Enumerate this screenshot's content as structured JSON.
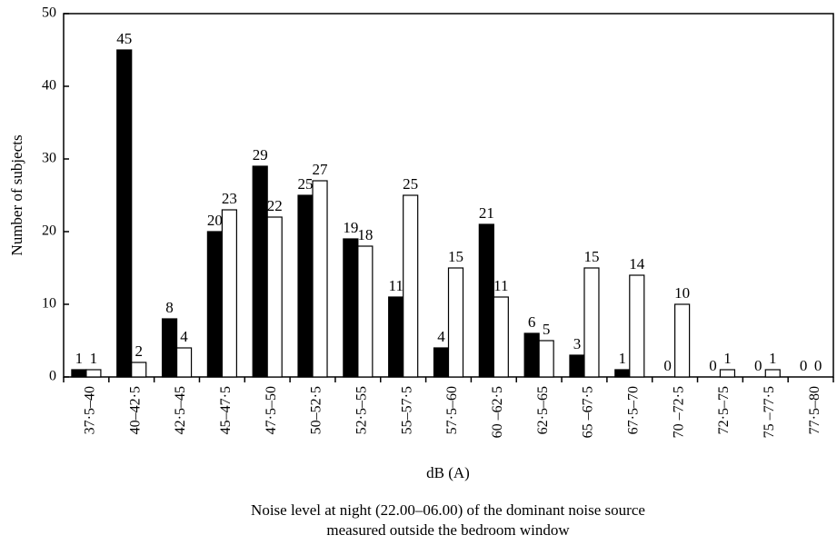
{
  "chart_data": {
    "type": "bar",
    "y_label": "Number of subjects",
    "x_label": "dB (A)",
    "caption": [
      "Noise level at night (22.00–06.00) of the dominant noise source",
      "measured outside the bedroom window"
    ],
    "categories": [
      "37·5–40",
      "40–42·5",
      "42·5–45",
      "45–47·5",
      "47·5–50",
      "50–52·5",
      "52·5–55",
      "55–57·5",
      "57·5–60",
      "60 –62·5",
      "62·5–65",
      "65 –67·5",
      "67·5–70",
      "70 –72·5",
      "72·5–75",
      "75 –77·5",
      "77·5–80"
    ],
    "series": [
      {
        "color": "#000000",
        "values": [
          1,
          45,
          8,
          20,
          29,
          25,
          19,
          11,
          4,
          21,
          6,
          3,
          1,
          0,
          0,
          0,
          0
        ]
      },
      {
        "color": "#ffffff",
        "values": [
          1,
          2,
          4,
          23,
          22,
          27,
          18,
          25,
          15,
          11,
          5,
          15,
          14,
          10,
          1,
          1,
          0
        ]
      }
    ],
    "ylim": [
      0,
      50
    ],
    "yticks": [
      0,
      10,
      20,
      30,
      40,
      50
    ]
  }
}
